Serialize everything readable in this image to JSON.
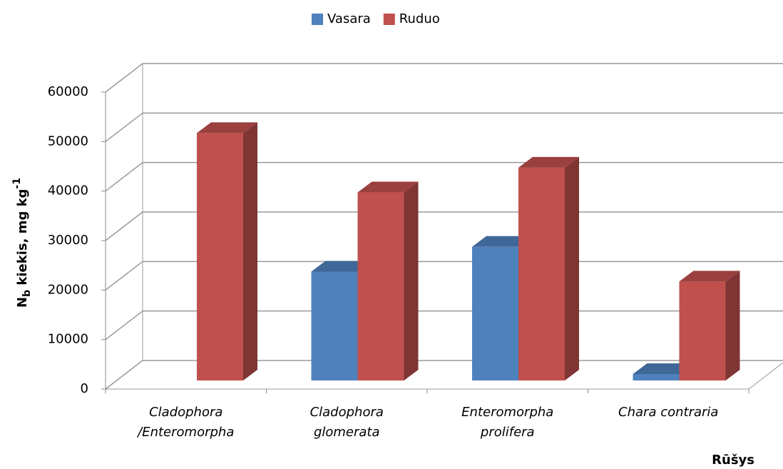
{
  "chart_data": {
    "type": "bar3d",
    "categories": [
      [
        "Cladophora",
        "/Enteromorpha"
      ],
      [
        "Cladophora",
        "glomerata"
      ],
      [
        "Enteromorpha",
        "prolifera"
      ],
      [
        "Chara contraria"
      ]
    ],
    "series": [
      {
        "name": "Vasara",
        "color": "#4f81bd",
        "values": [
          null,
          22000,
          27000,
          1300
        ]
      },
      {
        "name": "Ruduo",
        "color": "#c0504d",
        "values": [
          50000,
          38000,
          43000,
          20000
        ]
      }
    ],
    "ylim": [
      0,
      60000
    ],
    "yticks": [
      0,
      10000,
      20000,
      30000,
      40000,
      50000,
      60000
    ],
    "ylabel": [
      "N",
      "b",
      " kiekis, mg kg",
      "-1"
    ],
    "xlabel": "Rūšys",
    "grid": true,
    "legend": "top"
  }
}
